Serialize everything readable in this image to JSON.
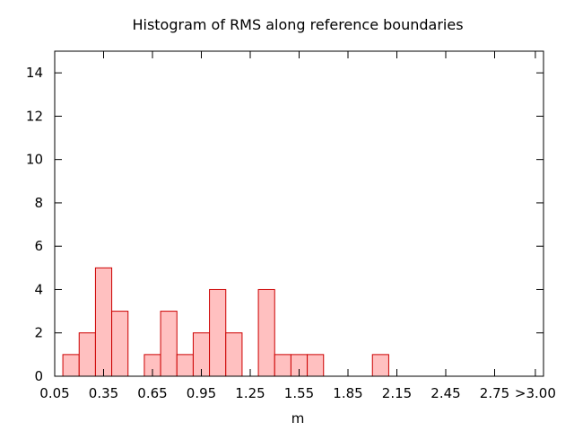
{
  "chart_data": {
    "type": "bar",
    "title": "Histogram of RMS along reference boundaries",
    "xlabel": "m",
    "ylabel": "",
    "xlim": [
      0.05,
      3.05
    ],
    "ylim": [
      0,
      15
    ],
    "x_tick_values": [
      0.05,
      0.35,
      0.65,
      0.95,
      1.25,
      1.55,
      1.85,
      2.15,
      2.45,
      2.75,
      3.0
    ],
    "x_tick_labels": [
      "0.05",
      "0.35",
      "0.65",
      "0.95",
      "1.25",
      "1.55",
      "1.85",
      "2.15",
      "2.45",
      "2.75",
      ">3.00"
    ],
    "y_tick_values": [
      0,
      2,
      4,
      6,
      8,
      10,
      12,
      14
    ],
    "y_tick_labels": [
      "0",
      "2",
      "4",
      "6",
      "8",
      "10",
      "12",
      "14"
    ],
    "bin_width": 0.1,
    "bins": [
      {
        "start": 0.1,
        "end": 0.2,
        "count": 1
      },
      {
        "start": 0.2,
        "end": 0.3,
        "count": 2
      },
      {
        "start": 0.3,
        "end": 0.4,
        "count": 5
      },
      {
        "start": 0.4,
        "end": 0.5,
        "count": 3
      },
      {
        "start": 0.6,
        "end": 0.7,
        "count": 1
      },
      {
        "start": 0.7,
        "end": 0.8,
        "count": 3
      },
      {
        "start": 0.8,
        "end": 0.9,
        "count": 1
      },
      {
        "start": 0.9,
        "end": 1.0,
        "count": 2
      },
      {
        "start": 1.0,
        "end": 1.1,
        "count": 4
      },
      {
        "start": 1.1,
        "end": 1.2,
        "count": 2
      },
      {
        "start": 1.3,
        "end": 1.4,
        "count": 4
      },
      {
        "start": 1.4,
        "end": 1.5,
        "count": 1
      },
      {
        "start": 1.5,
        "end": 1.6,
        "count": 1
      },
      {
        "start": 1.6,
        "end": 1.7,
        "count": 1
      },
      {
        "start": 2.0,
        "end": 2.1,
        "count": 1
      }
    ],
    "grid": false,
    "colors": {
      "bar_fill": "#ffc0c0",
      "bar_stroke": "#cc0000",
      "axis": "#000000"
    }
  }
}
